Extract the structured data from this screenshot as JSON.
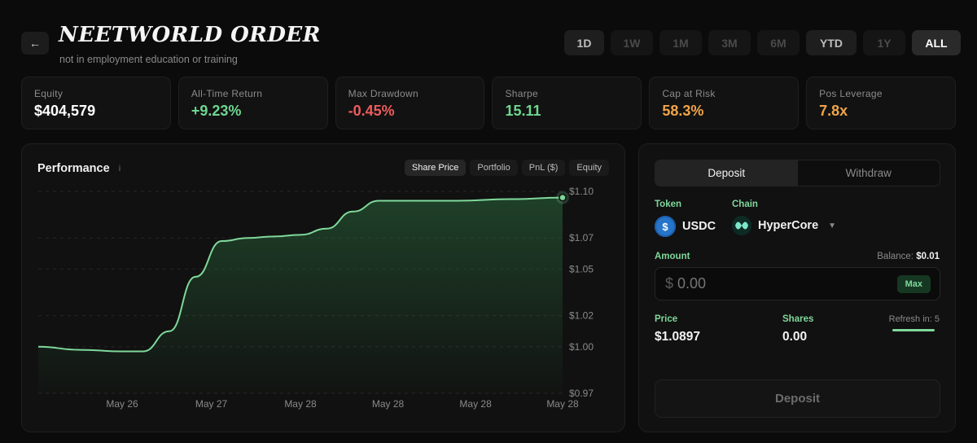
{
  "header": {
    "title": "NEETWORLD ORDER",
    "subtitle": "not in employment education or training",
    "back_icon": "arrow-left-icon"
  },
  "ranges": [
    {
      "label": "1D",
      "state": "on"
    },
    {
      "label": "1W",
      "state": "off"
    },
    {
      "label": "1M",
      "state": "off"
    },
    {
      "label": "3M",
      "state": "off"
    },
    {
      "label": "6M",
      "state": "off"
    },
    {
      "label": "YTD",
      "state": "on"
    },
    {
      "label": "1Y",
      "state": "off"
    },
    {
      "label": "ALL",
      "state": "selected"
    }
  ],
  "stats": [
    {
      "label": "Equity",
      "value": "$404,579",
      "color": "#ffffff"
    },
    {
      "label": "All-Time Return",
      "value": "+9.23%",
      "color": "#6fd68f"
    },
    {
      "label": "Max Drawdown",
      "value": "-0.45%",
      "color": "#ef5b5b"
    },
    {
      "label": "Sharpe",
      "value": "15.11",
      "color": "#6fd68f"
    },
    {
      "label": "Cap at Risk",
      "value": "58.3%",
      "color": "#f0a448"
    },
    {
      "label": "Pos Leverage",
      "value": "7.8x",
      "color": "#f0a448"
    }
  ],
  "performance": {
    "title": "Performance",
    "info_icon": "info-icon",
    "tabs": [
      {
        "label": "Share Price",
        "selected": true
      },
      {
        "label": "Portfolio",
        "selected": false
      },
      {
        "label": "PnL ($)",
        "selected": false
      },
      {
        "label": "Equity",
        "selected": false
      }
    ]
  },
  "chart_data": {
    "type": "area",
    "title": "Performance",
    "x": [
      0,
      0.08,
      0.16,
      0.2,
      0.25,
      0.3,
      0.35,
      0.4,
      0.45,
      0.5,
      0.55,
      0.6,
      0.65,
      0.7,
      0.8,
      0.9,
      1.0
    ],
    "y": [
      1.0,
      0.998,
      0.997,
      0.997,
      1.01,
      1.045,
      1.068,
      1.07,
      1.071,
      1.072,
      1.076,
      1.087,
      1.094,
      1.094,
      1.094,
      1.095,
      1.096
    ],
    "x_tick_positions": [
      0.16,
      0.33,
      0.5,
      0.667,
      0.834,
      1.0
    ],
    "x_tick_labels": [
      "May 26",
      "May 27",
      "May 28",
      "May 28",
      "May 28",
      "May 28"
    ],
    "y_ticks": [
      1.1,
      1.07,
      1.05,
      1.02,
      1.0,
      0.97
    ],
    "y_tick_labels": [
      "$1.10",
      "$1.07",
      "$1.05",
      "$1.02",
      "$1.00",
      "$0.97"
    ],
    "ylim": [
      0.97,
      1.1
    ],
    "grid": true,
    "line_color": "#7fd89b"
  },
  "deposit": {
    "tabs": [
      {
        "label": "Deposit",
        "selected": true
      },
      {
        "label": "Withdraw",
        "selected": false
      }
    ],
    "token_label": "Token",
    "token": "USDC",
    "token_icon": "usdc-icon",
    "chain_label": "Chain",
    "chain": "HyperCore",
    "chain_icon": "hypercore-icon",
    "amount_label": "Amount",
    "balance_label": "Balance:",
    "balance_value": "$0.01",
    "currency_symbol": "$",
    "amount_placeholder": "0.00",
    "max_label": "Max",
    "price_label": "Price",
    "price_value": "$1.0897",
    "shares_label": "Shares",
    "shares_value": "0.00",
    "refresh_label": "Refresh in: 5",
    "refresh_progress": 1.0,
    "button_label": "Deposit"
  }
}
